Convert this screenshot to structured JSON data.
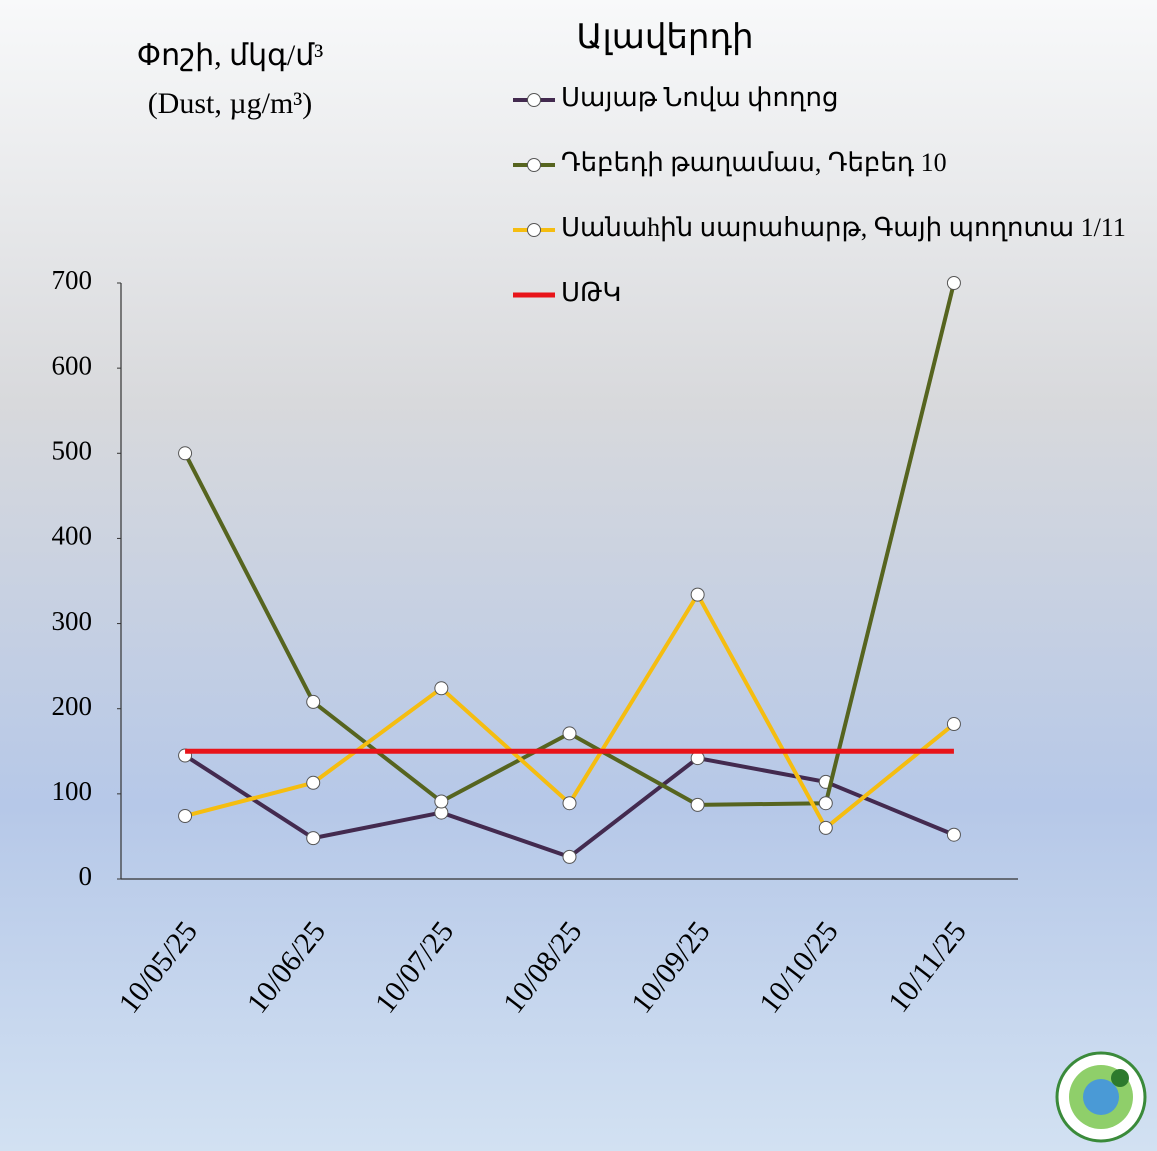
{
  "chart_data": {
    "type": "line",
    "title": "Ալավերդի",
    "y_label": [
      "Փոշի, մկգ/մ³",
      "(Dust, µg/m³)"
    ],
    "categories": [
      "10/05/25",
      "10/06/25",
      "10/07/25",
      "10/08/25",
      "10/09/25",
      "10/10/25",
      "10/11/25"
    ],
    "series": [
      {
        "name": "Սայաթ Նովա փողոց",
        "color": "#432a4f",
        "marker": true,
        "values": [
          145,
          48,
          78,
          26,
          142,
          114,
          52
        ]
      },
      {
        "name": "Դեբեդի թաղամաս, Դեբեդ 10",
        "color": "#56641f",
        "marker": true,
        "values": [
          500,
          208,
          91,
          171,
          87,
          89,
          700
        ]
      },
      {
        "name": "Սանաhին սարահարթ, Գայի պողոտա 1/11",
        "color": "#f5bd10",
        "marker": true,
        "values": [
          74,
          113,
          224,
          89,
          334,
          60,
          182
        ]
      },
      {
        "name": "ՍԹԿ",
        "color": "#e8141a",
        "marker": false,
        "values": [
          150,
          150,
          150,
          150,
          150,
          150,
          150
        ]
      }
    ],
    "ylim": [
      0,
      700
    ],
    "yticks": [
      0,
      100,
      200,
      300,
      400,
      500,
      600,
      700
    ],
    "grid": false
  }
}
